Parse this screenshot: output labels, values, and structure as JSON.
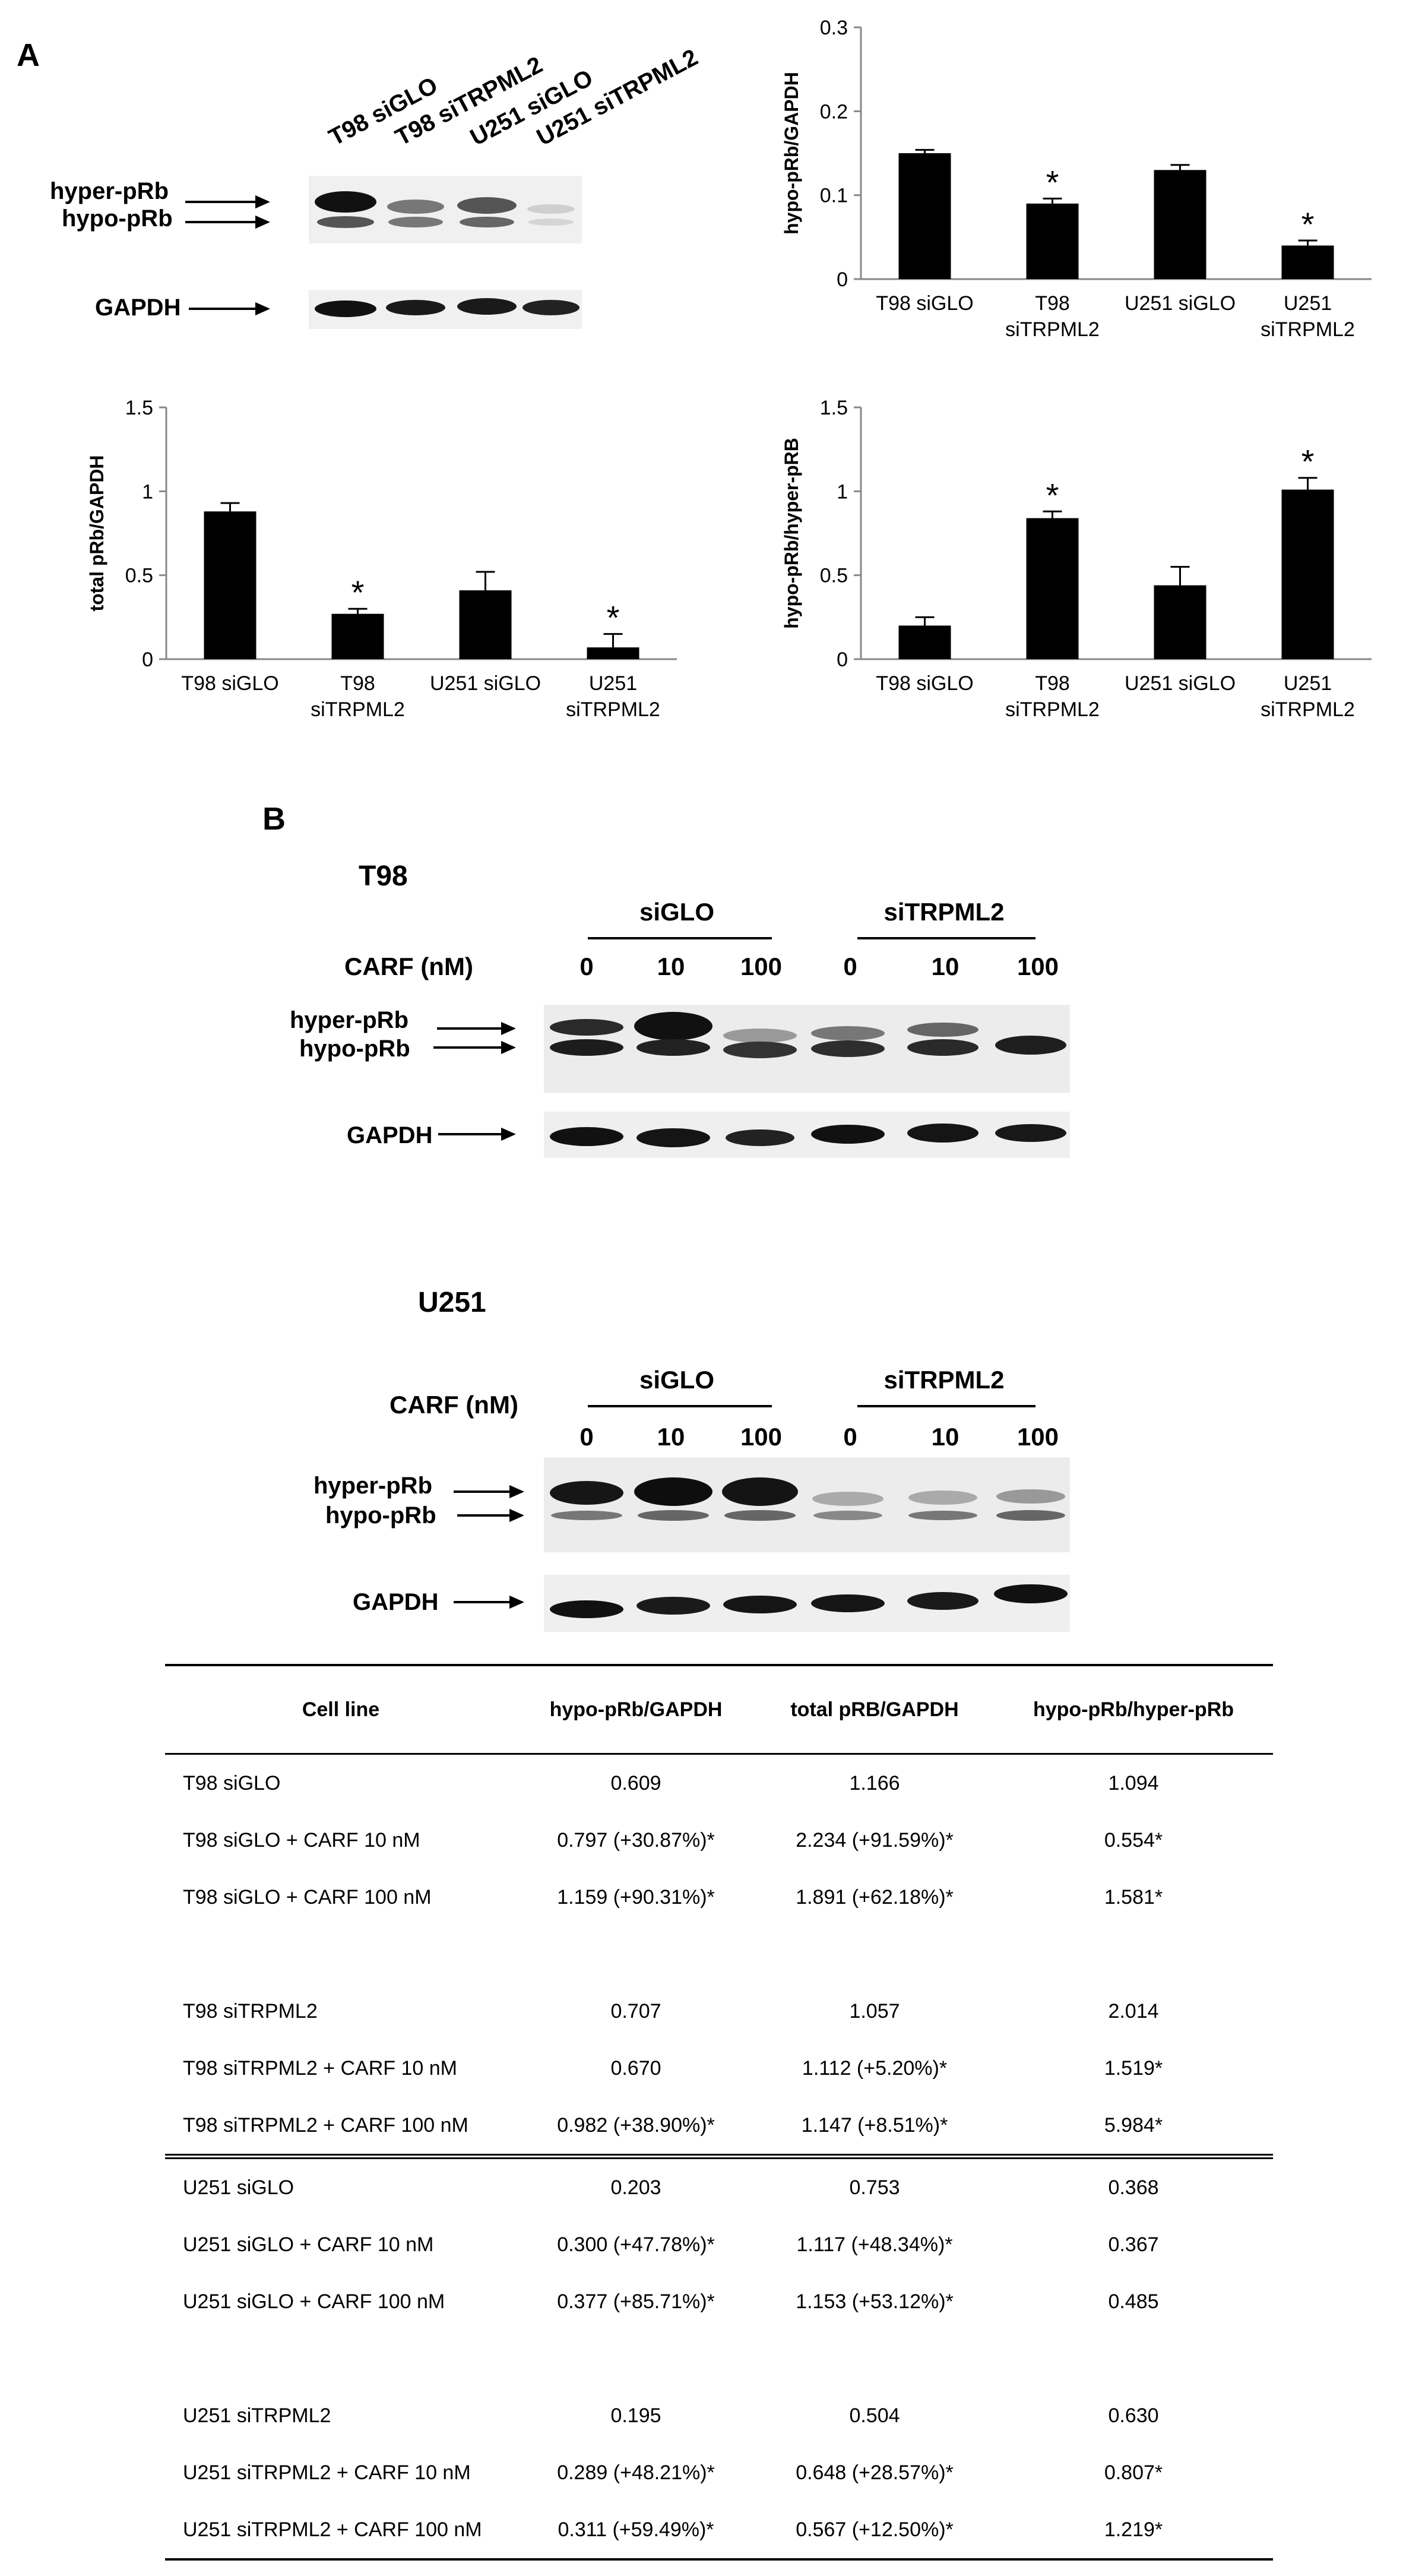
{
  "panel_a": {
    "letter": "A",
    "blot": {
      "lanes": [
        "T98 siGLO",
        "T98 siTRPML2",
        "U251 siGLO",
        "U251 siTRPML2"
      ],
      "labels": {
        "hyper": "hyper-pRb",
        "hypo": "hypo-pRb",
        "gapdh": "GAPDH"
      }
    }
  },
  "chart_data": [
    {
      "type": "bar",
      "categories": [
        "T98 siGLO",
        "T98 siTRPML2",
        "U251 siGLO",
        "U251 siTRPML2"
      ],
      "values": [
        0.15,
        0.09,
        0.13,
        0.04
      ],
      "errors": [
        0.004,
        0.006,
        0.006,
        0.006
      ],
      "significant": [
        false,
        true,
        false,
        true
      ],
      "ylabel": "hypo-pRb/GAPDH",
      "ylim": [
        0,
        0.3
      ],
      "yticks": [
        "0",
        "0.1",
        "0.2",
        "0.3"
      ],
      "ytick_values": [
        0,
        0.1,
        0.2,
        0.3
      ]
    },
    {
      "type": "bar",
      "categories": [
        "T98 siGLO",
        "T98 siTRPML2",
        "U251 siGLO",
        "U251 siTRPML2"
      ],
      "values": [
        0.88,
        0.27,
        0.41,
        0.07
      ],
      "errors": [
        0.05,
        0.03,
        0.11,
        0.08
      ],
      "significant": [
        false,
        true,
        false,
        true
      ],
      "ylabel": "total pRb/GAPDH",
      "ylim": [
        0,
        1.5
      ],
      "yticks": [
        "0",
        "0.5",
        "1",
        "1.5"
      ],
      "ytick_values": [
        0,
        0.5,
        1,
        1.5
      ]
    },
    {
      "type": "bar",
      "categories": [
        "T98 siGLO",
        "T98 siTRPML2",
        "U251 siGLO",
        "U251 siTRPML2"
      ],
      "values": [
        0.2,
        0.84,
        0.44,
        1.01
      ],
      "errors": [
        0.05,
        0.04,
        0.11,
        0.07
      ],
      "significant": [
        false,
        true,
        false,
        true
      ],
      "ylabel": "hypo-pRb/hyper-pRB",
      "ylim": [
        0,
        1.5
      ],
      "yticks": [
        "0",
        "0.5",
        "1",
        "1.5"
      ],
      "ytick_values": [
        0,
        0.5,
        1,
        1.5
      ]
    }
  ],
  "chart_labels": {
    "cat_lines": [
      [
        "T98 siGLO"
      ],
      [
        "T98",
        "siTRPML2"
      ],
      [
        "U251 siGLO"
      ],
      [
        "U251",
        "siTRPML2"
      ]
    ],
    "star": "*"
  },
  "panel_b": {
    "letter": "B",
    "t98": {
      "title": "T98",
      "group1": "siGLO",
      "group2": "siTRPML2",
      "carf": "CARF (nM)",
      "conc": [
        "0",
        "10",
        "100",
        "0",
        "10",
        "100"
      ],
      "labels": {
        "hyper": "hyper-pRb",
        "hypo": "hypo-pRb",
        "gapdh": "GAPDH"
      }
    },
    "u251": {
      "title": "U251",
      "group1": "siGLO",
      "group2": "siTRPML2",
      "carf": "CARF (nM)",
      "conc": [
        "0",
        "10",
        "100",
        "0",
        "10",
        "100"
      ],
      "labels": {
        "hyper": "hyper-pRb",
        "hypo": "hypo-pRb",
        "gapdh": "GAPDH"
      }
    }
  },
  "table": {
    "headers": [
      "Cell line",
      "hypo-pRb/GAPDH",
      "total pRB/GAPDH",
      "hypo-pRb/hyper-pRb"
    ],
    "rows": [
      [
        "T98 siGLO",
        "0.609",
        "1.166",
        "1.094"
      ],
      [
        "T98 siGLO + CARF 10 nM",
        "0.797 (+30.87%)*",
        "2.234 (+91.59%)*",
        "0.554*"
      ],
      [
        "T98 siGLO + CARF 100 nM",
        "1.159 (+90.31%)*",
        "1.891 (+62.18%)*",
        "1.581*"
      ],
      [
        "",
        "",
        "",
        ""
      ],
      [
        "T98 siTRPML2",
        "0.707",
        "1.057",
        "2.014"
      ],
      [
        "T98 siTRPML2 + CARF 10 nM",
        "0.670",
        "1.112 (+5.20%)*",
        "1.519*"
      ],
      [
        "T98 siTRPML2 + CARF 100 nM",
        "0.982 (+38.90%)*",
        "1.147 (+8.51%)*",
        "5.984*"
      ],
      [
        "U251 siGLO",
        "0.203",
        "0.753",
        "0.368"
      ],
      [
        "U251 siGLO + CARF 10 nM",
        "0.300 (+47.78%)*",
        "1.117 (+48.34%)*",
        "0.367"
      ],
      [
        "U251 siGLO + CARF 100 nM",
        "0.377 (+85.71%)*",
        "1.153 (+53.12%)*",
        "0.485"
      ],
      [
        "",
        "",
        "",
        ""
      ],
      [
        "U251 siTRPML2",
        "0.195",
        "0.504",
        "0.630"
      ],
      [
        "U251 siTRPML2 + CARF 10 nM",
        "0.289 (+48.21%)*",
        "0.648 (+28.57%)*",
        "0.807*"
      ],
      [
        "U251 siTRPML2 + CARF 100 nM",
        "0.311 (+59.49%)*",
        "0.567 (+12.50%)*",
        "1.219*"
      ]
    ]
  }
}
